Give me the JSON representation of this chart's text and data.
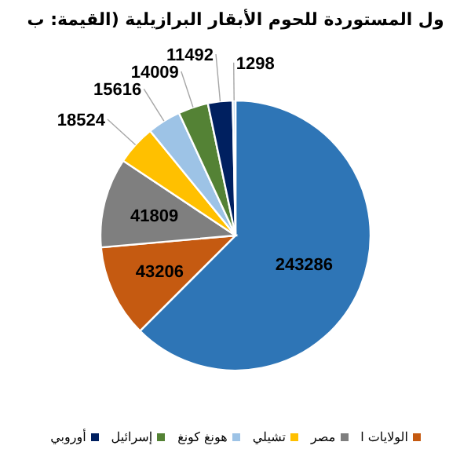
{
  "chart_data": {
    "type": "pie",
    "title": "ول المستوردة للحوم الأبقار البرازيلية (القيمة: ب",
    "categories": [
      null,
      "الولايات ا",
      "مصر",
      "تشيلي",
      "هونغ كونغ",
      "إسرائيل",
      "أوروبي",
      null
    ],
    "values": [
      243286,
      43206,
      41809,
      18524,
      15616,
      14009,
      11492,
      1298
    ],
    "colors": [
      "#2e75b6",
      "#c55a11",
      "#7f7f7f",
      "#ffc000",
      "#9dc3e6",
      "#548235",
      "#002060",
      "#bdd7ee"
    ],
    "data_labels": true,
    "legend": "bottom"
  }
}
